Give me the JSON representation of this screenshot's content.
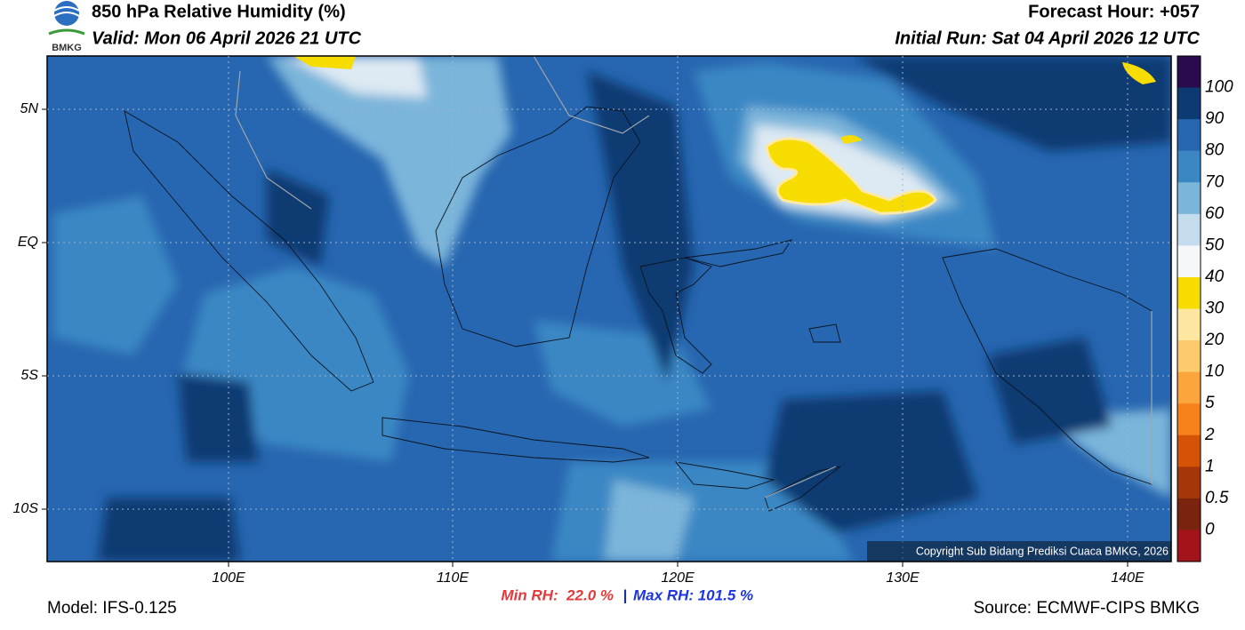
{
  "header": {
    "title": "850 hPa Relative Humidity (%)",
    "valid": "Valid: Mon 06 April 2026 21 UTC",
    "forecast_hour": "Forecast Hour: +057",
    "initial_run": "Initial Run: Sat 04 April 2026 12 UTC",
    "logo_text": "BMKG"
  },
  "map": {
    "lat_labels": [
      "5N",
      "EQ",
      "5S",
      "10S"
    ],
    "lon_labels": [
      "100E",
      "110E",
      "120E",
      "130E",
      "140E"
    ],
    "copyright": "Copyright Sub Bidang Prediksi Cuaca BMKG, 2026"
  },
  "colorbar": {
    "labels": [
      "100",
      "90",
      "80",
      "70",
      "60",
      "50",
      "40",
      "30",
      "20",
      "10",
      "5",
      "2",
      "1",
      "0.5",
      "0"
    ]
  },
  "footer": {
    "model": "Model: IFS-0.125",
    "min_rh": "Min RH:  22.0 %",
    "separator": "|",
    "max_rh": "Max RH: 101.5 %",
    "source": "Source: ECMWF-CIPS BMKG"
  }
}
